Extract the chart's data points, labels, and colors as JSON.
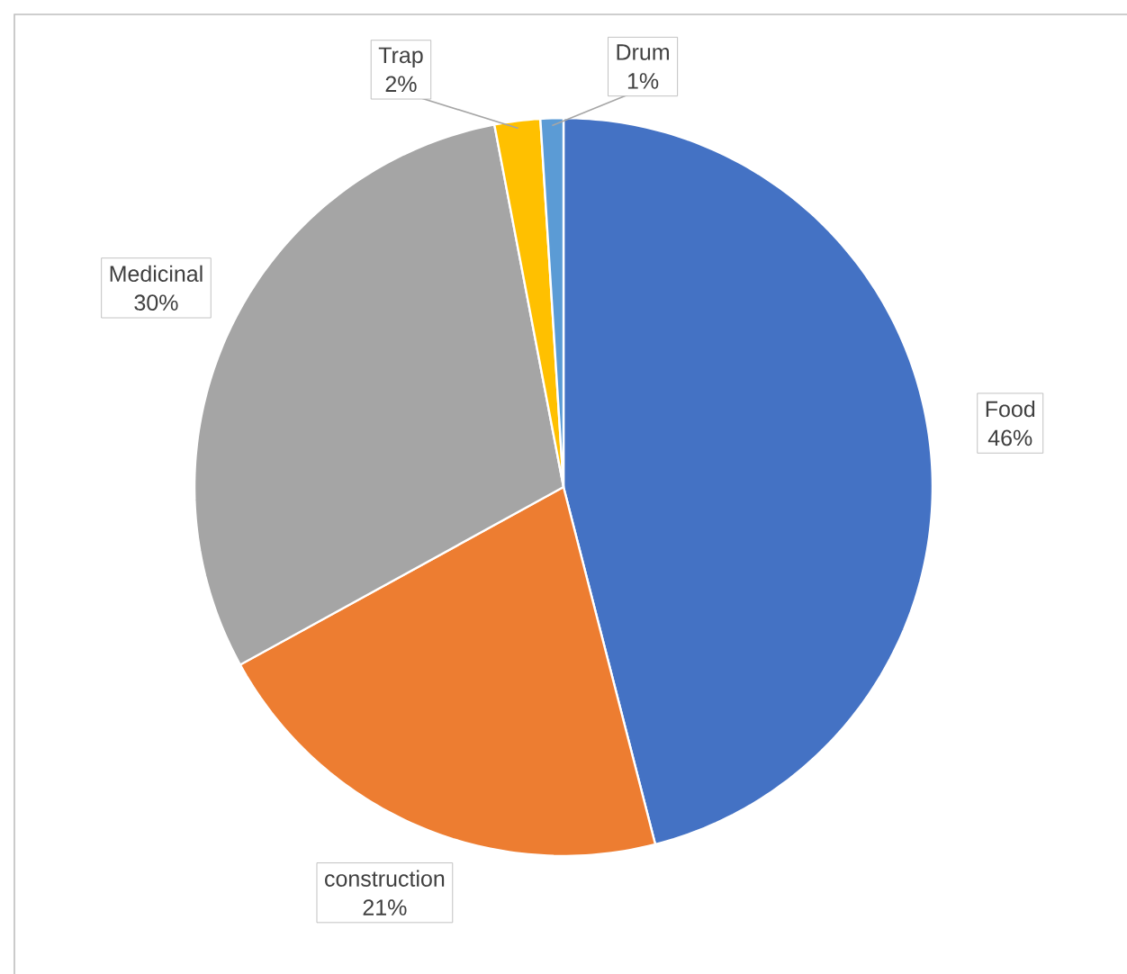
{
  "chart_data": {
    "type": "pie",
    "categories": [
      "Food",
      "construction",
      "Medicinal",
      "Trap",
      "Drum"
    ],
    "values": [
      46,
      21,
      30,
      2,
      1
    ],
    "colors": [
      "#4472c4",
      "#ed7d31",
      "#a5a5a5",
      "#ffc000",
      "#5b9bd5"
    ],
    "value_labels": [
      "46%",
      "21%",
      "30%",
      "2%",
      "1%"
    ]
  }
}
